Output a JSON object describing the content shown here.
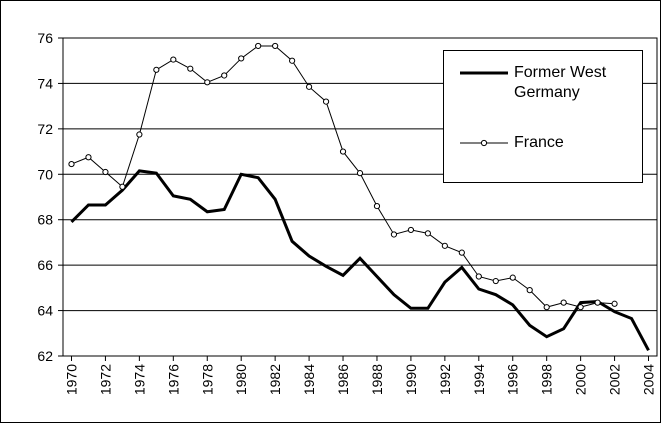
{
  "chart_data": {
    "type": "line",
    "x": [
      1970,
      1971,
      1972,
      1973,
      1974,
      1975,
      1976,
      1977,
      1978,
      1979,
      1980,
      1981,
      1982,
      1983,
      1984,
      1985,
      1986,
      1987,
      1988,
      1989,
      1990,
      1991,
      1992,
      1993,
      1994,
      1995,
      1996,
      1997,
      1998,
      1999,
      2000,
      2001,
      2002,
      2003,
      2004
    ],
    "series": [
      {
        "name": "Former West Germany",
        "color": "#000000",
        "marker": false,
        "values": [
          67.9,
          68.65,
          68.65,
          69.3,
          70.15,
          70.05,
          69.05,
          68.9,
          68.35,
          68.45,
          70.0,
          69.85,
          68.9,
          67.05,
          66.4,
          65.95,
          65.55,
          66.3,
          65.5,
          64.7,
          64.1,
          64.1,
          65.25,
          65.9,
          64.95,
          64.7,
          64.25,
          63.35,
          62.85,
          63.2,
          64.35,
          64.4,
          63.95,
          63.65,
          62.25
        ]
      },
      {
        "name": "France",
        "color": "#000000",
        "marker": true,
        "values": [
          70.45,
          70.75,
          70.1,
          69.45,
          71.75,
          74.6,
          75.05,
          74.65,
          74.05,
          74.35,
          75.1,
          75.65,
          75.65,
          75.0,
          73.85,
          73.2,
          71.0,
          70.05,
          68.6,
          67.35,
          67.55,
          67.4,
          66.85,
          66.55,
          65.5,
          65.3,
          65.45,
          64.9,
          64.15,
          64.35,
          64.15,
          64.35,
          64.3,
          null,
          null
        ]
      }
    ],
    "xlim": [
      1969.5,
      2004.5
    ],
    "xticks": [
      1970,
      1972,
      1974,
      1976,
      1978,
      1980,
      1982,
      1984,
      1986,
      1988,
      1990,
      1992,
      1994,
      1996,
      1998,
      2000,
      2002,
      2004
    ],
    "ylim": [
      62,
      76
    ],
    "yticks": [
      62,
      64,
      66,
      68,
      70,
      72,
      74,
      76
    ],
    "grid": true,
    "legend": "upper-right"
  }
}
